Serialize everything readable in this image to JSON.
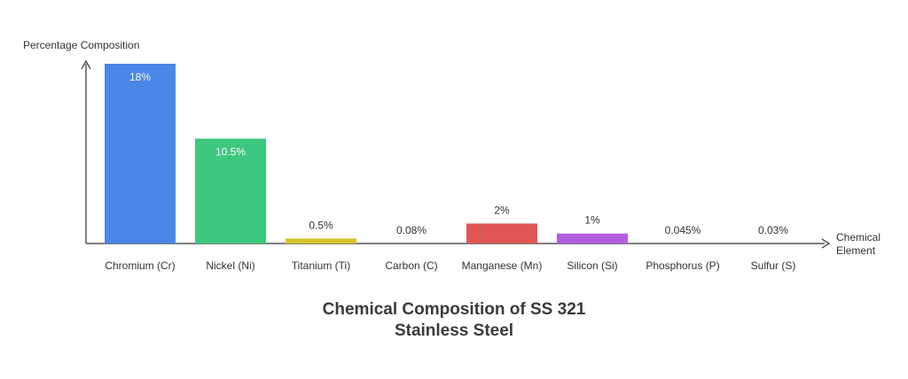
{
  "chart_data": {
    "type": "bar",
    "title_lines": [
      "Chemical Composition of SS 321",
      "Stainless Steel"
    ],
    "ylabel": "Percentage Composition",
    "xlabel_lines": [
      "Chemical",
      "Element"
    ],
    "categories": [
      "Chromium (Cr)",
      "Nickel (Ni)",
      "Titanium (Ti)",
      "Carbon (C)",
      "Manganese (Mn)",
      "Silicon (Si)",
      "Phosphorus (P)",
      "Sulfur (S)"
    ],
    "values": [
      18,
      10.5,
      0.5,
      0.08,
      2,
      1,
      0.045,
      0.03
    ],
    "value_labels": [
      "18%",
      "10.5%",
      "0.5%",
      "0.08%",
      "2%",
      "1%",
      "0.045%",
      "0.03%"
    ],
    "colors": [
      "#4a86e8",
      "#3ec77f",
      "#d4c52a",
      "#8a8a8a",
      "#e05555",
      "#b15ee0",
      "#8a8a8a",
      "#8a8a8a"
    ],
    "ylim": [
      0,
      18
    ],
    "grid": false,
    "legend": "none"
  }
}
